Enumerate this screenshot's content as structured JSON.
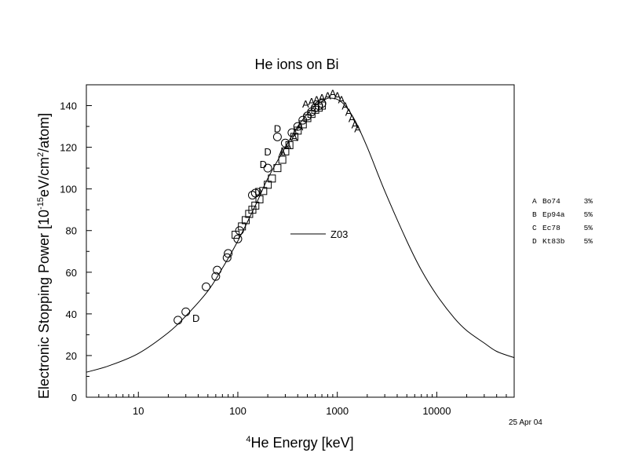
{
  "chart_data": {
    "type": "line",
    "title": "He ions on Bi",
    "xlabel": {
      "superscript": "4",
      "text": "He Energy [keV]"
    },
    "ylabel": {
      "prefix": "Electronic Stopping Power [10",
      "exp1": "-15",
      "mid": "eV/cm",
      "exp2": "2",
      "suffix": "/atom]"
    },
    "x_scale": "log",
    "xlim": [
      3,
      60000
    ],
    "ylim": [
      0,
      150
    ],
    "x_ticks": [
      10,
      100,
      1000,
      10000
    ],
    "x_tick_labels": [
      "10",
      "100",
      "1000",
      "10000"
    ],
    "y_ticks": [
      0,
      20,
      40,
      60,
      80,
      100,
      120,
      140
    ],
    "y_tick_labels": [
      "0",
      "20",
      "40",
      "60",
      "80",
      "100",
      "120",
      "140"
    ],
    "grid": false,
    "series": [
      {
        "name": "Z03",
        "style": "line",
        "x": [
          3,
          5,
          10,
          20,
          30,
          50,
          70,
          100,
          150,
          200,
          300,
          400,
          500,
          600,
          700,
          800,
          900,
          1000,
          1200,
          1500,
          2000,
          3000,
          5000,
          7000,
          10000,
          15000,
          20000,
          30000,
          40000,
          60000
        ],
        "values": [
          12,
          15,
          21,
          31,
          39,
          51,
          62,
          75,
          92,
          105,
          120,
          130,
          136,
          140,
          142,
          143.5,
          143.5,
          143,
          140,
          133,
          120,
          99,
          75,
          61,
          49,
          38,
          32,
          26,
          22,
          19
        ]
      },
      {
        "name": "A",
        "style": "marker",
        "marker": "A",
        "x": [
          280,
          320,
          370,
          420,
          480,
          550,
          620,
          700,
          800,
          900,
          1000,
          1100,
          1200,
          1300,
          1400,
          1500,
          1600
        ],
        "values": [
          118,
          121,
          125,
          130,
          141,
          142,
          143,
          144,
          145,
          146,
          145,
          143,
          140,
          137,
          134,
          131,
          129
        ]
      },
      {
        "name": "B",
        "style": "marker",
        "marker": "square",
        "x": [
          95,
          110,
          120,
          130,
          140,
          150,
          165,
          180,
          200,
          220,
          250,
          280,
          300,
          330,
          370,
          400,
          450,
          500,
          550,
          600,
          650,
          700
        ],
        "values": [
          78,
          82,
          85,
          88,
          90,
          92,
          95,
          99,
          102,
          105,
          110,
          114,
          118,
          121,
          125,
          128,
          131,
          134,
          136,
          138,
          139,
          140
        ]
      },
      {
        "name": "C",
        "style": "marker",
        "marker": "circle",
        "x": [
          25,
          30,
          48,
          60,
          62,
          78,
          80,
          100,
          104,
          140,
          150,
          200,
          250,
          300,
          350,
          400,
          450,
          500,
          550,
          600,
          650,
          700
        ],
        "values": [
          37,
          41,
          53,
          58,
          61,
          67,
          69,
          76,
          80,
          97,
          98,
          110,
          125,
          122,
          127,
          130,
          133,
          135,
          137,
          139,
          140,
          141
        ]
      },
      {
        "name": "D",
        "style": "marker",
        "marker": "D",
        "x": [
          38,
          160,
          180,
          200,
          250
        ],
        "values": [
          38,
          99,
          112,
          118,
          129
        ]
      }
    ],
    "legend_entries": [
      {
        "marker": "A",
        "label": "Bo74",
        "error": "3%"
      },
      {
        "marker": "B",
        "label": "Ep94a",
        "error": "5%"
      },
      {
        "marker": "C",
        "label": "Ec78",
        "error": "5%"
      },
      {
        "marker": "D",
        "label": "Kt83b",
        "error": "5%"
      }
    ],
    "curve_label": "Z03",
    "date": "25 Apr 04"
  }
}
